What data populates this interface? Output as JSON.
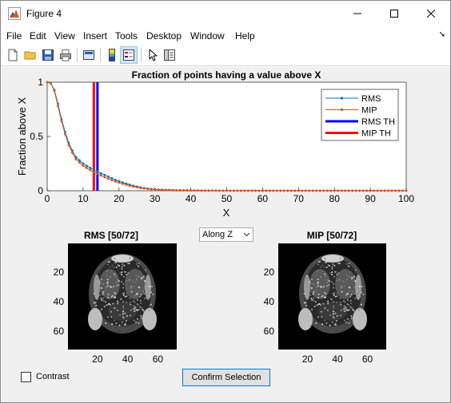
{
  "window": {
    "title": "Figure 4"
  },
  "menubar": {
    "items": [
      "File",
      "Edit",
      "View",
      "Insert",
      "Tools",
      "Desktop",
      "Window",
      "Help"
    ]
  },
  "toolbar": {
    "buttons": [
      "new-figure",
      "open-file",
      "save",
      "print",
      "link-plot",
      "insert-colorbar",
      "insert-legend",
      "edit-plot",
      "property-inspector"
    ]
  },
  "chart_data": [
    {
      "type": "line",
      "title": "Fraction of points having a value above X",
      "xlabel": "X",
      "ylabel": "Fraction above X",
      "xlim": [
        0,
        100
      ],
      "ylim": [
        0,
        1
      ],
      "xticks": [
        0,
        10,
        20,
        30,
        40,
        50,
        60,
        70,
        80,
        90,
        100
      ],
      "yticks": [
        0,
        0.5,
        1
      ],
      "legend_position": "top-right",
      "x": [
        0,
        1,
        2,
        3,
        4,
        5,
        6,
        7,
        8,
        9,
        10,
        11,
        12,
        13,
        14,
        15,
        16,
        17,
        18,
        19,
        20,
        21,
        22,
        23,
        24,
        25,
        26,
        27,
        28,
        29,
        30,
        31,
        32,
        33,
        34,
        35,
        36,
        37,
        38,
        39,
        40,
        41,
        42,
        43,
        44,
        45,
        46,
        47,
        48,
        49,
        50,
        51,
        52,
        53,
        54,
        55,
        56,
        57,
        58,
        59,
        60,
        61,
        62,
        63,
        64,
        65,
        66,
        67,
        68,
        69,
        70,
        71,
        72,
        73,
        74,
        75,
        76,
        77,
        78,
        79,
        80,
        81,
        82,
        83,
        84,
        85,
        86,
        87,
        88,
        89,
        90,
        91,
        92,
        93,
        94,
        95,
        96,
        97,
        98,
        99,
        100
      ],
      "series": [
        {
          "name": "RMS",
          "color": "#0072bd",
          "values": [
            1.0,
            0.99,
            0.93,
            0.8,
            0.66,
            0.54,
            0.44,
            0.37,
            0.31,
            0.28,
            0.25,
            0.23,
            0.21,
            0.19,
            0.175,
            0.16,
            0.145,
            0.13,
            0.115,
            0.1,
            0.088,
            0.076,
            0.065,
            0.055,
            0.046,
            0.038,
            0.031,
            0.025,
            0.02,
            0.016,
            0.013,
            0.011,
            0.009,
            0.008,
            0.007,
            0.006,
            0.005,
            0.005,
            0.004,
            0.004,
            0.003,
            0.003,
            0.003,
            0.002,
            0.002,
            0.002,
            0.002,
            0.002,
            0.001,
            0.001,
            0.001,
            0.001,
            0.001,
            0.001,
            0.001,
            0.001,
            0.001,
            0.001,
            0.001,
            0.001,
            0.001,
            0.001,
            0.001,
            0.001,
            0.001,
            0.001,
            0.001,
            0.001,
            0.001,
            0.001,
            0.001,
            0.001,
            0.001,
            0.001,
            0.001,
            0.001,
            0.001,
            0.001,
            0.001,
            0.001,
            0.001,
            0.001,
            0.001,
            0.001,
            0.001,
            0.001,
            0.001,
            0.001,
            0.001,
            0.001,
            0.001,
            0.001,
            0.001,
            0.001,
            0.001,
            0.001,
            0.001,
            0.001,
            0.001,
            0.001,
            0.001
          ]
        },
        {
          "name": "MIP",
          "color": "#d95319",
          "values": [
            1.0,
            0.99,
            0.92,
            0.78,
            0.64,
            0.52,
            0.42,
            0.35,
            0.29,
            0.26,
            0.23,
            0.21,
            0.19,
            0.17,
            0.155,
            0.14,
            0.125,
            0.11,
            0.097,
            0.085,
            0.074,
            0.064,
            0.055,
            0.047,
            0.039,
            0.032,
            0.026,
            0.021,
            0.017,
            0.014,
            0.011,
            0.009,
            0.008,
            0.007,
            0.006,
            0.005,
            0.004,
            0.004,
            0.003,
            0.003,
            0.003,
            0.002,
            0.002,
            0.002,
            0.002,
            0.001,
            0.001,
            0.001,
            0.001,
            0.001,
            0.001,
            0.001,
            0.001,
            0.001,
            0.001,
            0.001,
            0.001,
            0.001,
            0.001,
            0.001,
            0.001,
            0.001,
            0.001,
            0.001,
            0.001,
            0.001,
            0.001,
            0.001,
            0.001,
            0.001,
            0.001,
            0.001,
            0.001,
            0.001,
            0.001,
            0.001,
            0.001,
            0.001,
            0.001,
            0.001,
            0.001,
            0.001,
            0.001,
            0.001,
            0.001,
            0.001,
            0.001,
            0.001,
            0.001,
            0.001,
            0.001,
            0.001,
            0.001,
            0.001,
            0.001,
            0.001,
            0.001,
            0.001,
            0.001,
            0.001,
            0.001
          ]
        }
      ],
      "thresholds": [
        {
          "name": "RMS TH",
          "x": 14,
          "color": "#0000ff"
        },
        {
          "name": "MIP TH",
          "x": 13,
          "color": "#ff0000"
        }
      ]
    },
    {
      "type": "heatmap",
      "title": "RMS [50/72]",
      "xticks": [
        20,
        40,
        60
      ],
      "yticks": [
        20,
        40,
        60
      ],
      "xlim": [
        0.5,
        72.5
      ],
      "ylim": [
        0.5,
        72.5
      ],
      "colormap": "gray"
    },
    {
      "type": "heatmap",
      "title": "MIP [50/72]",
      "xticks": [
        20,
        40,
        60
      ],
      "yticks": [
        20,
        40,
        60
      ],
      "xlim": [
        0.5,
        72.5
      ],
      "ylim": [
        0.5,
        72.5
      ],
      "colormap": "gray"
    }
  ],
  "controls": {
    "axis_select": {
      "value": "Along Z"
    },
    "contrast_checkbox": {
      "label": "Contrast",
      "checked": false
    },
    "confirm_button": {
      "label": "Confirm Selection"
    }
  }
}
